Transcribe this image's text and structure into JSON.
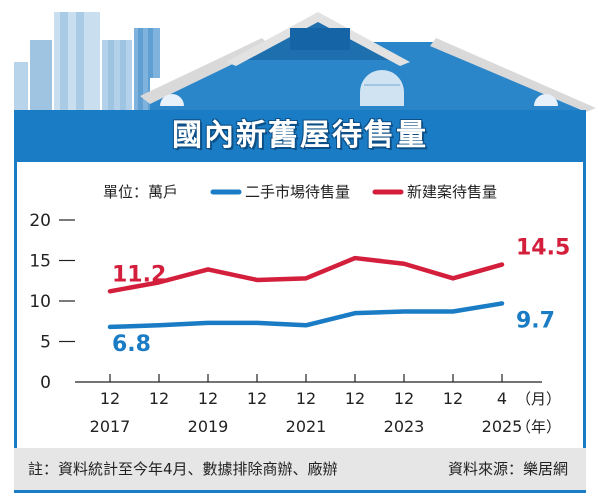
{
  "title": "國內新舊屋待售量",
  "legend": {
    "unit_label": "單位：萬戶",
    "series_0": "二手市場待售量",
    "series_1": "新建案待售量"
  },
  "footer": {
    "note": "註：資料統計至今年4月、數據排除商辦、廠辦",
    "source": "資料來源：樂居網"
  },
  "colors": {
    "series_0": "#1a7cc4",
    "series_1": "#d41f3c",
    "accent": "#1a7cc4"
  },
  "chart_data": {
    "type": "line",
    "x_ticks": [
      "12",
      "12",
      "12",
      "12",
      "12",
      "12",
      "12",
      "12",
      "4"
    ],
    "year_labels": [
      {
        "index": 0,
        "label": "2017"
      },
      {
        "index": 2,
        "label": "2019"
      },
      {
        "index": 4,
        "label": "2021"
      },
      {
        "index": 6,
        "label": "2023"
      },
      {
        "index": 8,
        "label": "2025"
      }
    ],
    "x_unit_month": "（月）",
    "x_unit_year": "（年）",
    "y_ticks": [
      "0",
      "5",
      "10",
      "15",
      "20"
    ],
    "ylim": [
      0,
      20
    ],
    "series": [
      {
        "name": "二手市場待售量",
        "values": [
          6.8,
          7.0,
          7.3,
          7.3,
          7.0,
          8.5,
          8.7,
          8.7,
          9.7
        ],
        "start_label": "6.8",
        "end_label": "9.7"
      },
      {
        "name": "新建案待售量",
        "values": [
          11.2,
          12.3,
          13.9,
          12.6,
          12.8,
          15.3,
          14.6,
          12.8,
          14.5
        ],
        "start_label": "11.2",
        "end_label": "14.5"
      }
    ]
  }
}
